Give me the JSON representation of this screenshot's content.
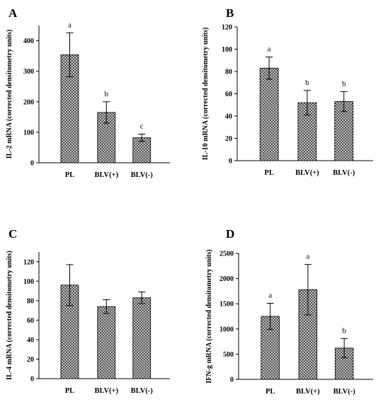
{
  "chart_data": [
    {
      "type": "bar",
      "panel_label": "A",
      "ylabel": "IL-2 mRNA (corrected densitometry units)",
      "categories": [
        "PL",
        "BLV(+)",
        "BLV(-)"
      ],
      "values": [
        354,
        165,
        82
      ],
      "errors": [
        72,
        35,
        12
      ],
      "significance": [
        "a",
        "b",
        "c"
      ],
      "ylim": [
        0,
        450
      ],
      "yticks": [
        0,
        100,
        200,
        300,
        400
      ],
      "grid": false,
      "fill_pattern": "crosshatch"
    },
    {
      "type": "bar",
      "panel_label": "B",
      "ylabel": "IL-10 mRNA (corrected densitometry units)",
      "categories": [
        "PL",
        "BLV(+)",
        "BLV(-)"
      ],
      "values": [
        83,
        52,
        53
      ],
      "errors": [
        10,
        11,
        9
      ],
      "significance": [
        "a",
        "b",
        "b"
      ],
      "ylim": [
        0,
        120
      ],
      "yticks": [
        0,
        20,
        40,
        60,
        80,
        100,
        120
      ],
      "grid": false,
      "fill_pattern": "crosshatch"
    },
    {
      "type": "bar",
      "panel_label": "C",
      "ylabel": "IL-4 mRNA (corrected densitometry units)",
      "categories": [
        "PL",
        "BLV(+)",
        "BLV(-)"
      ],
      "values": [
        96,
        74,
        83
      ],
      "errors": [
        21,
        7,
        6
      ],
      "significance": [
        "",
        "",
        ""
      ],
      "ylim": [
        0,
        130
      ],
      "yticks": [
        0,
        20,
        40,
        60,
        80,
        100,
        120
      ],
      "grid": false,
      "fill_pattern": "crosshatch"
    },
    {
      "type": "bar",
      "panel_label": "D",
      "ylabel": "IFN-g mRNA (corrected densitometry units)",
      "categories": [
        "PL",
        "BLV(+)",
        "BLV(-)"
      ],
      "values": [
        1250,
        1780,
        620
      ],
      "errors": [
        260,
        500,
        190
      ],
      "significance": [
        "a",
        "a",
        "b"
      ],
      "ylim": [
        0,
        2500
      ],
      "yticks": [
        0,
        500,
        1000,
        1500,
        2000,
        2500
      ],
      "grid": false,
      "fill_pattern": "crosshatch"
    }
  ]
}
